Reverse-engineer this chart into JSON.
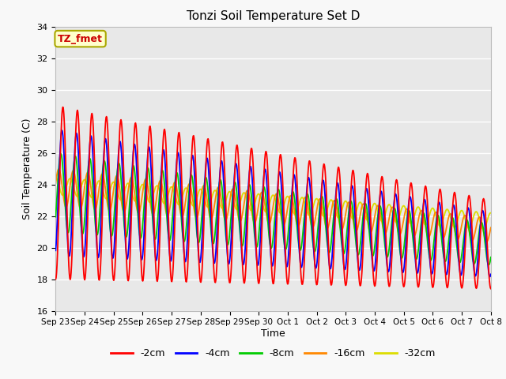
{
  "title": "Tonzi Soil Temperature Set D",
  "xlabel": "Time",
  "ylabel": "Soil Temperature (C)",
  "annotation": "TZ_fmet",
  "ylim": [
    16,
    34
  ],
  "yticks": [
    16,
    18,
    20,
    22,
    24,
    26,
    28,
    30,
    32,
    34
  ],
  "series_colors": {
    "-2cm": "#ff0000",
    "-4cm": "#0000ff",
    "-8cm": "#00cc00",
    "-16cm": "#ff8800",
    "-32cm": "#dddd00"
  },
  "series_labels": [
    "-2cm",
    "-4cm",
    "-8cm",
    "-16cm",
    "-32cm"
  ],
  "fig_facecolor": "#f8f8f8",
  "ax_facecolor": "#e8e8e8",
  "x_tick_labels": [
    "Sep 23",
    "Sep 24",
    "Sep 25",
    "Sep 26",
    "Sep 27",
    "Sep 28",
    "Sep 29",
    "Sep 30",
    "Oct 1",
    "Oct 2",
    "Oct 3",
    "Oct 4",
    "Oct 5",
    "Oct 6",
    "Oct 7",
    "Oct 8"
  ],
  "n_points": 960,
  "total_days": 15
}
